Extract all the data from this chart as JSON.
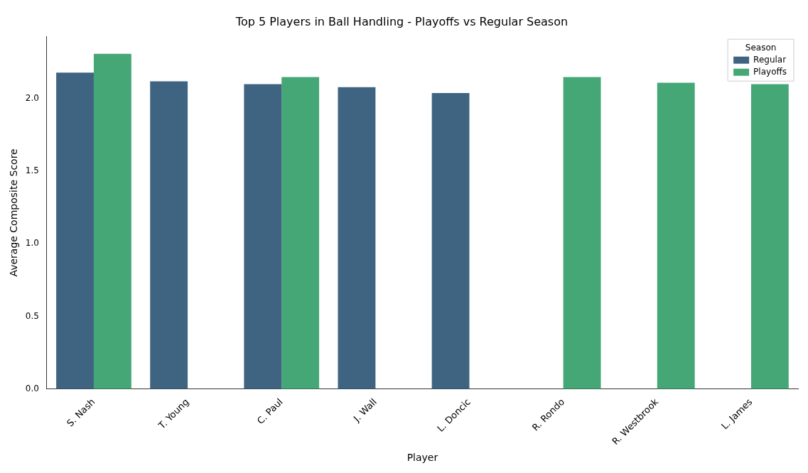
{
  "chart_data": {
    "type": "bar",
    "title": "Top 5 Players in Ball Handling - Playoffs vs Regular Season",
    "xlabel": "Player",
    "ylabel": "Average Composite Score",
    "legend_title": "Season",
    "categories": [
      "S. Nash",
      "T. Young",
      "C. Paul",
      "J. Wall",
      "L. Doncic",
      "R. Rondo",
      "R. Westbrook",
      "L. James"
    ],
    "series": [
      {
        "name": "Regular",
        "color": "#3e6481",
        "values": [
          2.18,
          2.12,
          2.1,
          2.08,
          2.04,
          null,
          null,
          null
        ]
      },
      {
        "name": "Playoffs",
        "color": "#45a776",
        "values": [
          2.31,
          null,
          2.15,
          null,
          null,
          2.15,
          2.11,
          2.1
        ]
      }
    ],
    "ylim": [
      0,
      2.43
    ],
    "yticks": [
      {
        "value": 0,
        "label": "0.0"
      },
      {
        "value": 0.5,
        "label": "0.5"
      },
      {
        "value": 1,
        "label": "1.0"
      },
      {
        "value": 1.5,
        "label": "1.5"
      },
      {
        "value": 2,
        "label": "2.0"
      }
    ],
    "grid": false,
    "legend": "top right"
  }
}
